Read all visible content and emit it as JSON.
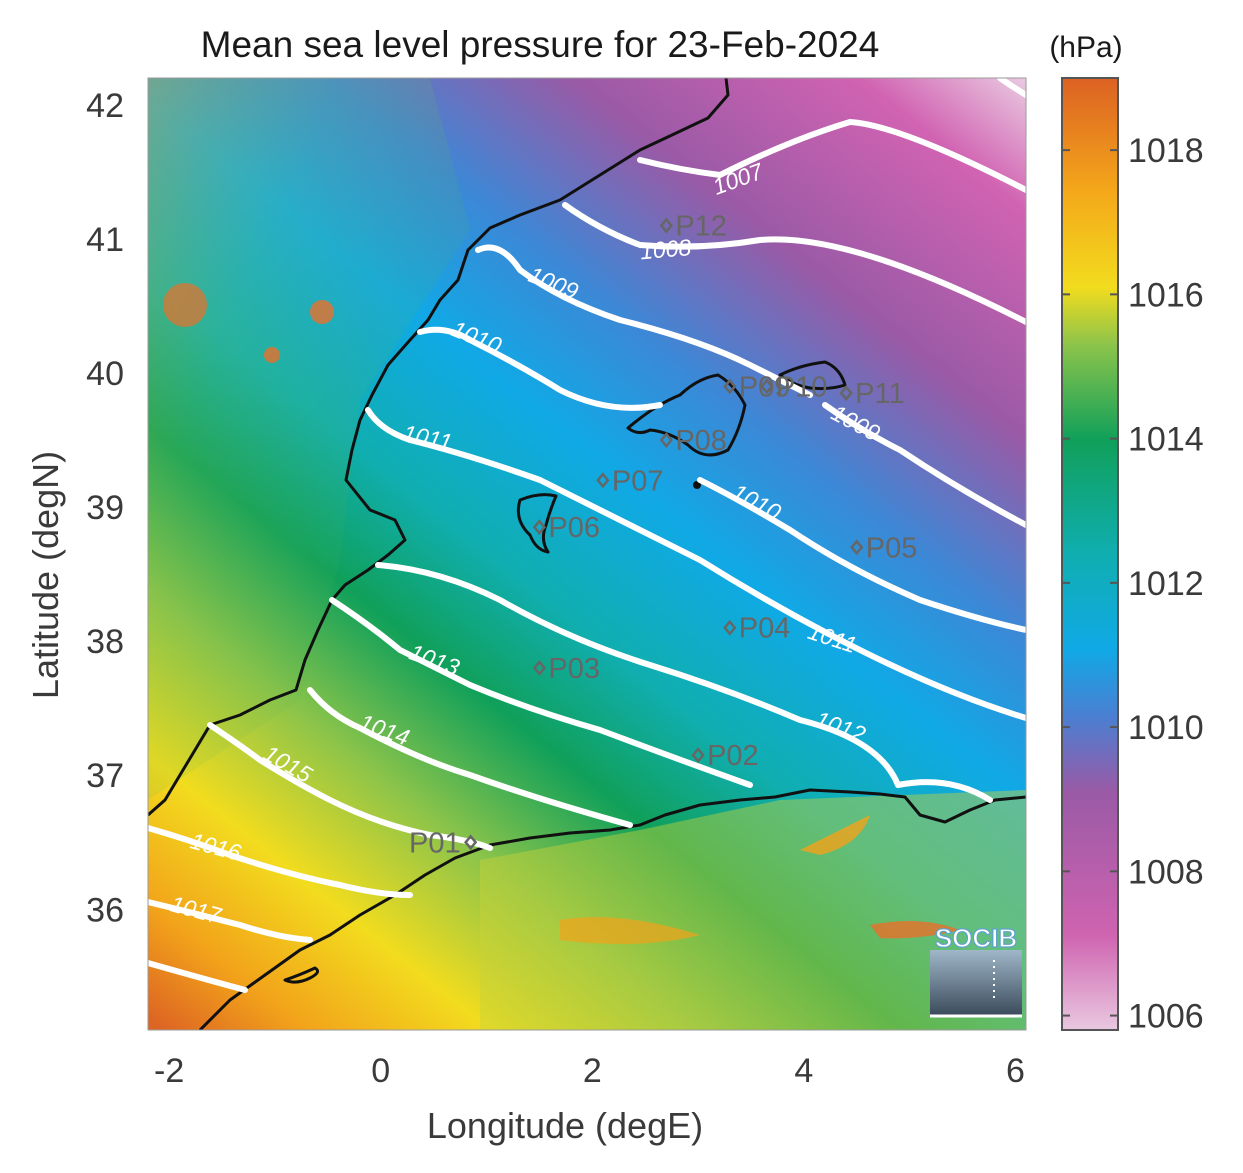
{
  "title": "Mean sea level pressure for 23-Feb-2024",
  "colorbar": {
    "unit": "(hPa)",
    "ticks": [
      "1018",
      "1016",
      "1014",
      "1012",
      "1010",
      "1008",
      "1006"
    ],
    "colors": [
      "#e7c6de",
      "#cf63b0",
      "#9a5aa6",
      "#3d86d4",
      "#13a9e4",
      "#0fb0b0",
      "#12a05a",
      "#7bc14a",
      "#f0dd1e",
      "#f4a81a",
      "#e06a22",
      "#d65f27"
    ]
  },
  "axes": {
    "xlabel": "Longitude (degE)",
    "ylabel": "Latitude (degN)",
    "xticks": [
      "-2",
      "0",
      "2",
      "4",
      "6"
    ],
    "yticks": [
      "42",
      "41",
      "40",
      "39",
      "38",
      "37",
      "36"
    ],
    "xlim": [
      -2.2,
      6.1
    ],
    "ylim": [
      35.1,
      42.2
    ]
  },
  "contour_labels": [
    "1007",
    "1008",
    "1009",
    "1010",
    "1011",
    "1010",
    "1009",
    "1011",
    "1012",
    "1013",
    "1014",
    "1015",
    "1016",
    "1017"
  ],
  "stations": [
    {
      "name": "P01",
      "lon": 0.85,
      "lat": 36.5
    },
    {
      "name": "P02",
      "lon": 3.0,
      "lat": 37.15
    },
    {
      "name": "P03",
      "lon": 1.5,
      "lat": 37.8
    },
    {
      "name": "P04",
      "lon": 3.3,
      "lat": 38.1
    },
    {
      "name": "P05",
      "lon": 4.5,
      "lat": 38.7
    },
    {
      "name": "P06",
      "lon": 1.5,
      "lat": 38.85
    },
    {
      "name": "P07",
      "lon": 2.1,
      "lat": 39.2
    },
    {
      "name": "P08",
      "lon": 2.7,
      "lat": 39.5
    },
    {
      "name": "P09",
      "lon": 3.3,
      "lat": 39.9
    },
    {
      "name": "P10",
      "lon": 3.65,
      "lat": 39.9
    },
    {
      "name": "P11",
      "lon": 4.4,
      "lat": 39.85
    },
    {
      "name": "P12",
      "lon": 2.7,
      "lat": 41.1
    }
  ],
  "logo": "SOCIB",
  "chart_data": {
    "type": "heatmap",
    "title": "Mean sea level pressure for 23-Feb-2024",
    "xlabel": "Longitude (degE)",
    "ylabel": "Latitude (degN)",
    "xlim": [
      -2.2,
      6.1
    ],
    "ylim": [
      35.1,
      42.2
    ],
    "colorbar_range": [
      1005.8,
      1019.0
    ],
    "colorbar_unit": "(hPa)",
    "isobars": [
      1007,
      1008,
      1009,
      1010,
      1011,
      1012,
      1013,
      1014,
      1015,
      1016,
      1017
    ]
  }
}
